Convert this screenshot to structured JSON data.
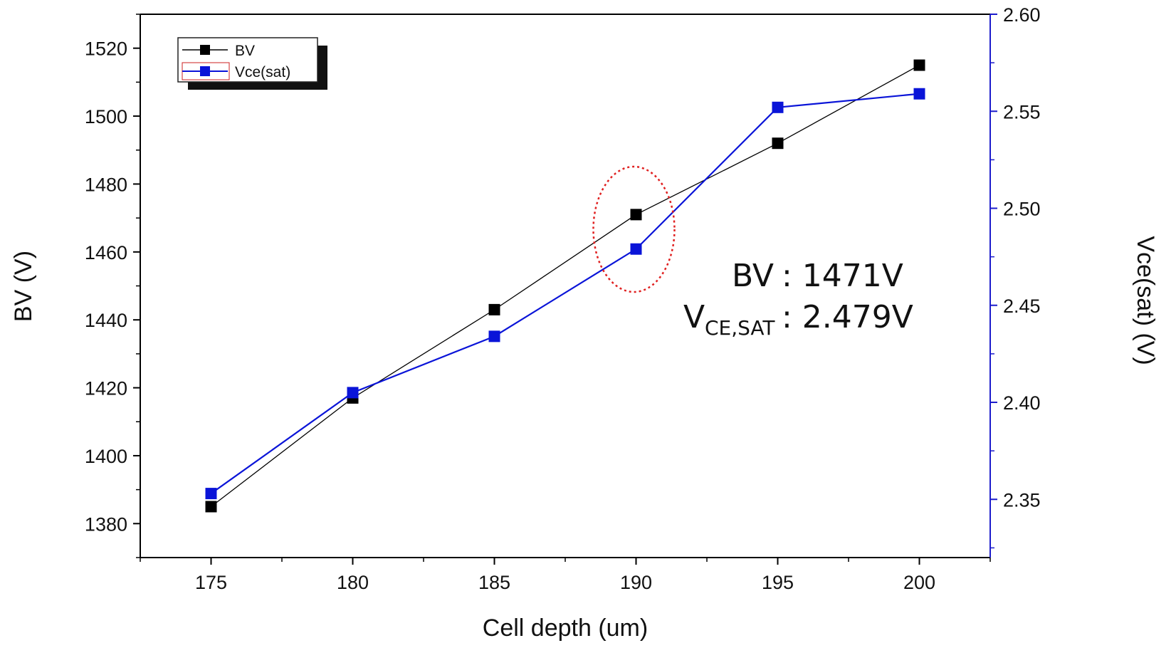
{
  "chart_data": {
    "type": "line",
    "title": "",
    "xlabel": "Cell depth (um)",
    "ylabel": "BV (V)",
    "y2label": "Vce(sat) (V)",
    "x": [
      175,
      180,
      185,
      190,
      195,
      200
    ],
    "xlim": [
      172.5,
      202.5
    ],
    "ylim": [
      1370,
      1530
    ],
    "y2lim": [
      2.32,
      2.6
    ],
    "xticks": [
      175,
      180,
      185,
      190,
      195,
      200
    ],
    "yticks": [
      1380,
      1400,
      1420,
      1440,
      1460,
      1480,
      1500,
      1520
    ],
    "y2ticks": [
      "2.35",
      "2.40",
      "2.45",
      "2.50",
      "2.55",
      "2.60"
    ],
    "series": [
      {
        "name": "BV",
        "axis": "left",
        "color": "#000000",
        "marker": "square",
        "values": [
          1385,
          1417,
          1443,
          1471,
          1492,
          1515
        ]
      },
      {
        "name": "Vce(sat)",
        "axis": "right",
        "color": "#0a14d8",
        "marker": "square",
        "values": [
          2.353,
          2.405,
          2.434,
          2.479,
          2.552,
          2.559
        ]
      }
    ],
    "legend_position": "top-left",
    "right_axis_color": "#1c1ccc",
    "annotation": {
      "highlight_x": 190,
      "highlight_color": "#e02020",
      "bv_label": "BV",
      "bv_value": ": 1471V",
      "vce_label": "V",
      "vce_sub": "CE,SAT",
      "vce_value": ": 2.479V"
    }
  }
}
